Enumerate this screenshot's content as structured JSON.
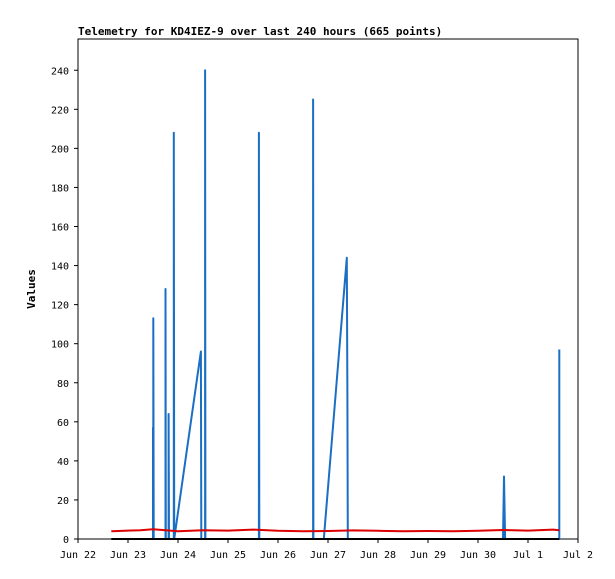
{
  "chart_data": {
    "type": "line",
    "title": "Telemetry for KD4IEZ-9 over last 240 hours (665 points)",
    "xlabel": "",
    "ylabel": "Values",
    "x_axis": "time",
    "xlim": [
      "Jun 22 00:00",
      "Jul 2 00:00"
    ],
    "ylim": [
      0,
      256
    ],
    "x_ticks": [
      "Jun 22",
      "Jun 23",
      "Jun 24",
      "Jun 25",
      "Jun 26",
      "Jun 27",
      "Jun 28",
      "Jun 29",
      "Jun 30",
      "Jul 1",
      "Jul 2"
    ],
    "y_ticks": [
      0,
      20,
      40,
      60,
      80,
      100,
      120,
      140,
      160,
      180,
      200,
      220,
      240
    ],
    "grid": false,
    "legend": "none",
    "series": [
      {
        "color": "#1a6fc4",
        "points": [
          [
            "Jun 23 12:00",
            0
          ],
          [
            "Jun 23 12:00",
            57
          ],
          [
            "Jun 23 12:10",
            0
          ],
          [
            "Jun 23 12:10",
            113
          ],
          [
            "Jun 23 12:20",
            0
          ],
          [
            "Jun 23 18:00",
            0
          ],
          [
            "Jun 23 18:00",
            128
          ],
          [
            "Jun 23 18:10",
            0
          ],
          [
            "Jun 23 19:30",
            0
          ],
          [
            "Jun 23 19:30",
            64
          ],
          [
            "Jun 23 19:40",
            0
          ],
          [
            "Jun 23 22:00",
            0
          ],
          [
            "Jun 23 22:00",
            208
          ],
          [
            "Jun 23 22:10",
            0
          ],
          [
            "Jun 24 11:00",
            96
          ],
          [
            "Jun 24 11:10",
            0
          ],
          [
            "Jun 24 13:00",
            0
          ],
          [
            "Jun 24 13:00",
            240
          ],
          [
            "Jun 24 13:10",
            0
          ],
          [
            "Jun 25 14:50",
            0
          ],
          [
            "Jun 25 14:50",
            208
          ],
          [
            "Jun 25 15:00",
            0
          ],
          [
            "Jun 26 16:50",
            0
          ],
          [
            "Jun 26 16:50",
            225
          ],
          [
            "Jun 26 17:00",
            0
          ],
          [
            "Jun 26 22:00",
            0
          ],
          [
            "Jun 27 09:00",
            144
          ],
          [
            "Jun 27 09:20",
            73
          ],
          [
            "Jun 27 09:30",
            0
          ],
          [
            "Jun 30 12:00",
            0
          ],
          [
            "Jun 30 12:30",
            32
          ],
          [
            "Jun 30 13:00",
            0
          ],
          [
            "Jul 1 15:00",
            0
          ],
          [
            "Jul 1 15:00",
            97
          ]
        ]
      },
      {
        "color": "#dd0000",
        "points": [
          [
            "Jun 22 16:00",
            4
          ],
          [
            "Jun 23 06:00",
            4.5
          ],
          [
            "Jun 23 12:00",
            5
          ],
          [
            "Jun 23 18:00",
            4.5
          ],
          [
            "Jun 24 00:00",
            4
          ],
          [
            "Jun 24 12:00",
            4.5
          ],
          [
            "Jun 25 00:00",
            4.3
          ],
          [
            "Jun 25 12:00",
            4.8
          ],
          [
            "Jun 26 00:00",
            4.2
          ],
          [
            "Jun 26 12:00",
            4.0
          ],
          [
            "Jun 27 00:00",
            4.1
          ],
          [
            "Jun 27 12:00",
            4.4
          ],
          [
            "Jun 28 00:00",
            4.2
          ],
          [
            "Jun 28 12:00",
            4.0
          ],
          [
            "Jun 29 00:00",
            4.1
          ],
          [
            "Jun 29 12:00",
            4.0
          ],
          [
            "Jun 30 00:00",
            4.2
          ],
          [
            "Jun 30 12:00",
            4.6
          ],
          [
            "Jul 1 00:00",
            4.3
          ],
          [
            "Jul 1 12:00",
            4.8
          ],
          [
            "Jul 1 15:00",
            4.5
          ]
        ]
      },
      {
        "color": "#000000",
        "points": [
          [
            "Jun 22 16:00",
            0
          ],
          [
            "Jul 1 15:00",
            0
          ]
        ]
      }
    ]
  }
}
